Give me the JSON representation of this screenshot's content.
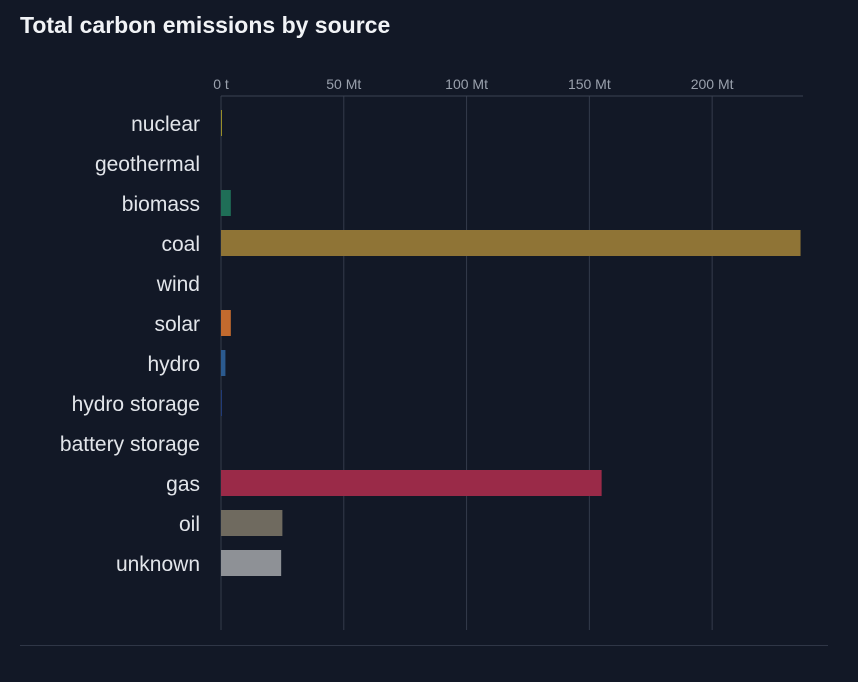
{
  "title": "Total carbon emissions by source",
  "chart_data": {
    "type": "bar",
    "orientation": "horizontal",
    "title": "Total carbon emissions by source",
    "xlabel": "",
    "ylabel": "",
    "unit": "Mt",
    "xlim": [
      0,
      237
    ],
    "x_ticks": [
      0,
      50,
      100,
      150,
      200
    ],
    "x_tick_labels": [
      "0 t",
      "50 Mt",
      "100 Mt",
      "150 Mt",
      "200 Mt"
    ],
    "grid": true,
    "categories": [
      "nuclear",
      "geothermal",
      "biomass",
      "coal",
      "wind",
      "solar",
      "hydro",
      "hydro storage",
      "battery storage",
      "gas",
      "oil",
      "unknown"
    ],
    "values": [
      0.3,
      0,
      4,
      236,
      0,
      4,
      1.8,
      0.4,
      0,
      155,
      25,
      24.5
    ],
    "colors": [
      "#c9b92c",
      "#8f3b1f",
      "#1f6e57",
      "#8f7436",
      "#4a7a3c",
      "#c26a2e",
      "#2b5a8f",
      "#223c79",
      "#5b3a86",
      "#9a2a48",
      "#6f6a5f",
      "#8e9196"
    ]
  }
}
